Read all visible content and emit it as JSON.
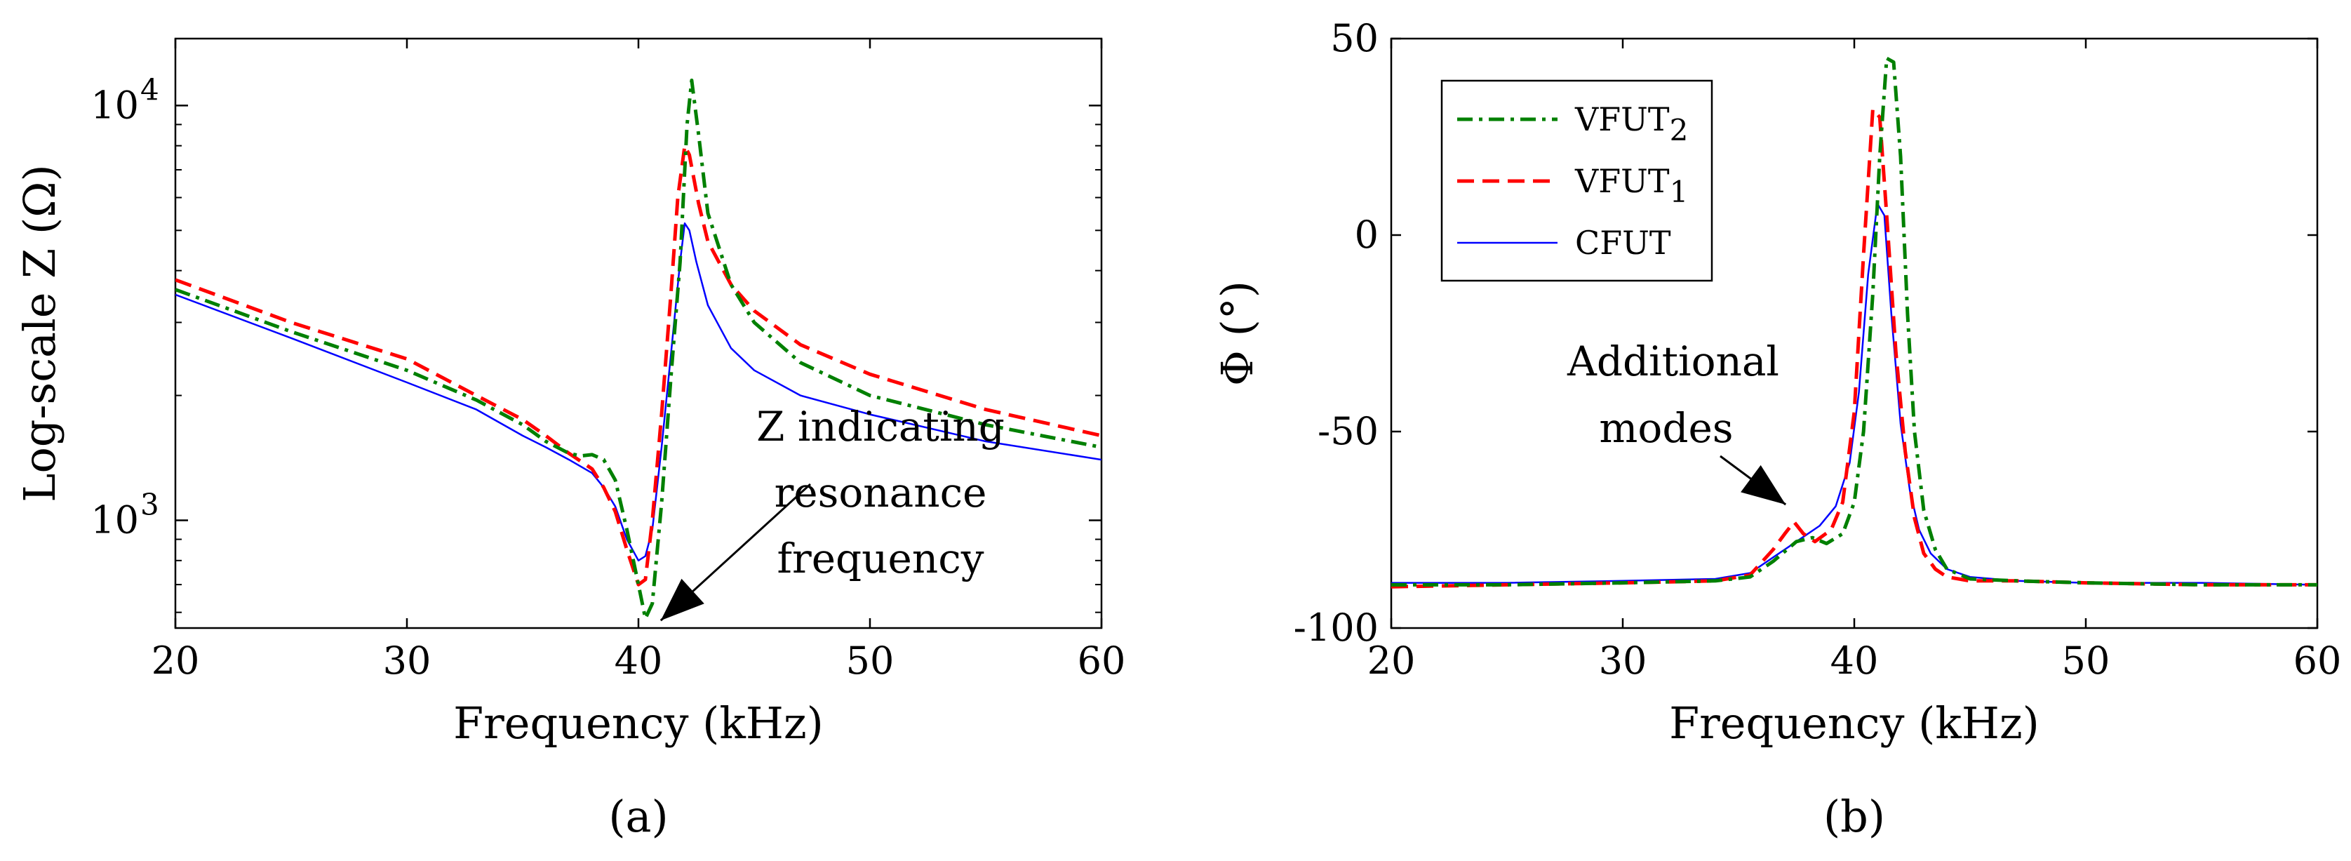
{
  "chart_data": [
    {
      "panel": "a",
      "type": "line",
      "caption": "(a)",
      "xlabel": "Frequency (kHz)",
      "ylabel": "Log-scale Z (Ω)",
      "xlim": [
        20,
        60
      ],
      "ylim": [
        550,
        14500
      ],
      "y_scale": "log",
      "x_ticks": [
        20,
        30,
        40,
        50,
        60
      ],
      "y_ticks": [
        {
          "value": 1000,
          "base": "10",
          "exp": "3"
        },
        {
          "value": 10000,
          "base": "10",
          "exp": "4"
        }
      ],
      "grid": false,
      "annotation": {
        "lines": [
          "Z indicating",
          "resonance",
          "frequency"
        ],
        "points_to": {
          "x": 40.6,
          "y": 620
        }
      },
      "series": [
        {
          "name": "VFUT2",
          "color": "#008000",
          "style": "dash-dot",
          "x": [
            20,
            25,
            30,
            33,
            35,
            36,
            37,
            37.5,
            38,
            38.5,
            39,
            39.5,
            40,
            40.3,
            40.6,
            41,
            41.4,
            41.8,
            42.1,
            42.3,
            42.6,
            43,
            44,
            45,
            47,
            50,
            55,
            60
          ],
          "y": [
            3600,
            2850,
            2300,
            1950,
            1700,
            1550,
            1450,
            1430,
            1440,
            1400,
            1250,
            950,
            700,
            580,
            630,
            1100,
            2200,
            4200,
            9000,
            11500,
            8500,
            5500,
            3700,
            3000,
            2400,
            2000,
            1700,
            1500
          ]
        },
        {
          "name": "VFUT1",
          "color": "#ff0000",
          "style": "dashed",
          "x": [
            20,
            25,
            30,
            33,
            35,
            36,
            37,
            38,
            38.5,
            39,
            39.5,
            40,
            40.3,
            40.6,
            41,
            41.4,
            41.7,
            42,
            42.2,
            42.6,
            43,
            44,
            45,
            47,
            50,
            55,
            60
          ],
          "y": [
            3800,
            3000,
            2450,
            2000,
            1750,
            1600,
            1450,
            1330,
            1200,
            1050,
            850,
            700,
            720,
            1000,
            1800,
            3500,
            6000,
            8000,
            7600,
            5800,
            4700,
            3700,
            3200,
            2650,
            2250,
            1850,
            1600
          ]
        },
        {
          "name": "CFUT",
          "color": "#0000ff",
          "style": "solid",
          "x": [
            20,
            25,
            30,
            33,
            35,
            36,
            37,
            38,
            38.5,
            39,
            39.5,
            40,
            40.3,
            40.6,
            41,
            41.4,
            41.8,
            42,
            42.2,
            42.5,
            43,
            44,
            45,
            47,
            50,
            55,
            60
          ],
          "y": [
            3500,
            2750,
            2150,
            1850,
            1600,
            1500,
            1400,
            1300,
            1200,
            1080,
            900,
            800,
            820,
            950,
            1500,
            2500,
            4200,
            5200,
            5000,
            4200,
            3300,
            2600,
            2300,
            2000,
            1800,
            1550,
            1400
          ]
        }
      ]
    },
    {
      "panel": "b",
      "type": "line",
      "caption": "(b)",
      "xlabel": "Frequency (kHz)",
      "ylabel": "Φ (°)",
      "xlim": [
        20,
        60
      ],
      "ylim": [
        -100,
        50
      ],
      "x_ticks": [
        20,
        30,
        40,
        50,
        60
      ],
      "y_ticks": [
        -100,
        -50,
        0,
        50
      ],
      "grid": false,
      "legend": {
        "position": "top-left",
        "entries": [
          {
            "base": "VFUT",
            "sub": "2",
            "color": "#008000",
            "style": "dash-dot"
          },
          {
            "base": "VFUT",
            "sub": "1",
            "color": "#ff0000",
            "style": "dashed"
          },
          {
            "base": "CFUT",
            "sub": "",
            "color": "#0000ff",
            "style": "solid"
          }
        ]
      },
      "annotation": {
        "lines": [
          "Additional",
          "modes"
        ],
        "points_to": {
          "x": 37.4,
          "y": -70
        }
      },
      "series": [
        {
          "name": "VFUT2",
          "color": "#008000",
          "style": "dash-dot",
          "x": [
            20,
            25,
            30,
            34,
            35.5,
            36.5,
            37.5,
            38.2,
            38.8,
            39.5,
            40,
            40.4,
            40.8,
            41.1,
            41.4,
            41.7,
            42,
            42.3,
            42.6,
            43,
            43.5,
            44,
            45,
            47,
            50,
            55,
            60
          ],
          "y": [
            -89,
            -89,
            -88.5,
            -88,
            -87,
            -83,
            -78,
            -77,
            -78.5,
            -76,
            -68,
            -50,
            -15,
            20,
            45,
            44,
            20,
            -20,
            -50,
            -70,
            -80,
            -85,
            -87.5,
            -88,
            -88.5,
            -89,
            -89
          ]
        },
        {
          "name": "VFUT1",
          "color": "#ff0000",
          "style": "dashed",
          "x": [
            20,
            25,
            30,
            34,
            35.5,
            36.5,
            37,
            37.4,
            37.8,
            38.3,
            39,
            39.5,
            40,
            40.4,
            40.8,
            41.1,
            41.4,
            41.8,
            42.2,
            42.6,
            43,
            43.5,
            44,
            45,
            47,
            50,
            55,
            60
          ],
          "y": [
            -89.5,
            -89,
            -88.5,
            -88,
            -86.5,
            -80,
            -76,
            -73,
            -76,
            -78,
            -75,
            -68,
            -45,
            -5,
            32,
            30,
            5,
            -30,
            -55,
            -72,
            -81,
            -85,
            -87,
            -88,
            -88,
            -88.5,
            -89,
            -89
          ]
        },
        {
          "name": "CFUT",
          "color": "#0000ff",
          "style": "solid",
          "x": [
            20,
            25,
            30,
            34,
            35.5,
            36.5,
            37.5,
            38.5,
            39.2,
            39.8,
            40.2,
            40.6,
            41,
            41.3,
            41.6,
            42,
            42.4,
            42.8,
            43.3,
            44,
            45,
            47,
            50,
            55,
            60
          ],
          "y": [
            -88.5,
            -88.5,
            -88,
            -87.5,
            -86,
            -82,
            -78,
            -74,
            -69,
            -58,
            -40,
            -10,
            8,
            5,
            -20,
            -48,
            -65,
            -75,
            -81,
            -85,
            -87,
            -88,
            -88.5,
            -88.5,
            -89
          ]
        }
      ]
    }
  ]
}
